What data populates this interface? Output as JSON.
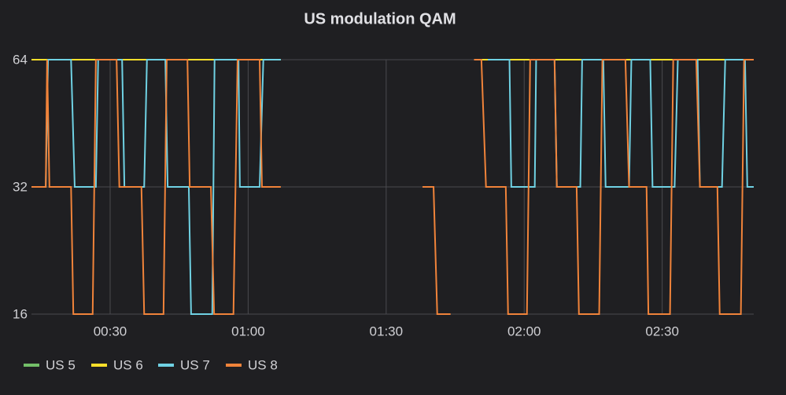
{
  "chart_data": {
    "type": "line",
    "title": "US modulation QAM",
    "xlim": [
      12.9,
      169.9
    ],
    "xticks": [
      {
        "value": 30,
        "label": "00:30"
      },
      {
        "value": 60,
        "label": "01:00"
      },
      {
        "value": 90,
        "label": "01:30"
      },
      {
        "value": 120,
        "label": "02:00"
      },
      {
        "value": 150,
        "label": "02:30"
      }
    ],
    "ylim": [
      16,
      64
    ],
    "yticks": [
      16,
      32,
      64
    ],
    "ylog": 2,
    "grid": true,
    "legend": "bottom-left",
    "series": [
      {
        "name": "US 5",
        "color": "#73bf69",
        "x": [
          12.9,
          67.1,
          80,
          110,
          169.9
        ],
        "values": [
          64,
          64,
          null,
          64,
          64
        ]
      },
      {
        "name": "US 6",
        "color": "#fade2a",
        "x": [
          12.9,
          67.1,
          80,
          110,
          169.9
        ],
        "values": [
          64,
          64,
          null,
          64,
          64
        ]
      },
      {
        "name": "US 7",
        "color": "#6fd1e3",
        "x": [
          12.9,
          16,
          16.5,
          21.5,
          22.3,
          26.9,
          27.4,
          32.6,
          33.1,
          37.4,
          38,
          42,
          42.5,
          47.1,
          47.6,
          52.2,
          52.7,
          57.9,
          58.2,
          62.5,
          63.3,
          67.1,
          80,
          112.1,
          116.8,
          117.2,
          122.3,
          122.6,
          126.6,
          127.1,
          132.2,
          132.6,
          137.2,
          137.7,
          142.8,
          143.3,
          147.4,
          147.9,
          152.7,
          153.4,
          157.7,
          158.2,
          163,
          163.7,
          168,
          168.5,
          169.9
        ],
        "values": [
          32,
          32,
          64,
          64,
          32,
          32,
          64,
          64,
          32,
          32,
          64,
          64,
          32,
          32,
          16,
          16,
          64,
          64,
          32,
          32,
          64,
          64,
          null,
          64,
          64,
          32,
          32,
          64,
          64,
          32,
          32,
          64,
          64,
          32,
          32,
          64,
          64,
          32,
          32,
          64,
          64,
          32,
          32,
          64,
          64,
          32,
          32
        ]
      },
      {
        "name": "US 8",
        "color": "#f0833a",
        "x": [
          12.9,
          16,
          16.3,
          16.8,
          21.5,
          22,
          26.2,
          26.9,
          31.4,
          32,
          36.8,
          37.4,
          41.6,
          42.3,
          46.8,
          47.3,
          51.9,
          52.6,
          56.8,
          57.7,
          62.5,
          63,
          67.1,
          80,
          97.9,
          100.3,
          101.1,
          104,
          106,
          109.1,
          110.7,
          111.7,
          116,
          116.5,
          120.6,
          121.3,
          126.6,
          127.1,
          131.4,
          131.9,
          136.3,
          137,
          142,
          142.8,
          146.6,
          147,
          151.7,
          152.4,
          157.4,
          158.2,
          162,
          162.5,
          167.1,
          167.8,
          169.9
        ],
        "values": [
          32,
          32,
          64,
          32,
          32,
          16,
          16,
          64,
          64,
          32,
          32,
          16,
          16,
          64,
          64,
          32,
          32,
          16,
          16,
          64,
          64,
          32,
          32,
          null,
          32,
          32,
          16,
          16,
          null,
          64,
          64,
          32,
          32,
          16,
          16,
          64,
          64,
          32,
          32,
          16,
          16,
          64,
          64,
          32,
          32,
          16,
          16,
          64,
          64,
          32,
          32,
          16,
          16,
          64,
          64
        ]
      }
    ]
  }
}
